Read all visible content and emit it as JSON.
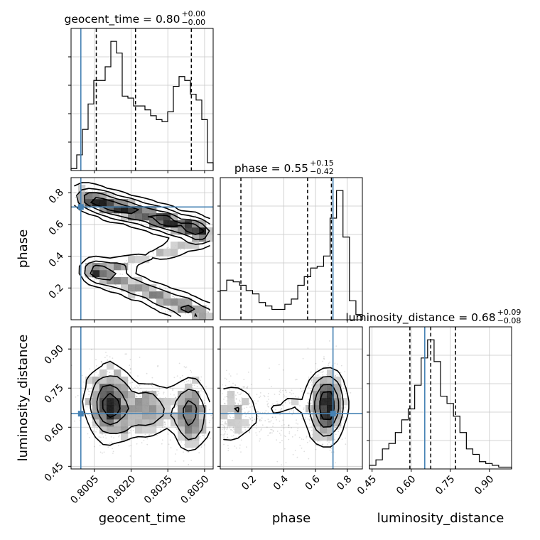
{
  "chart_data": {
    "type": "corner",
    "parameters": [
      "geocent_time",
      "phase",
      "luminosity_distance"
    ],
    "ranges": {
      "geocent_time": [
        0.79955,
        0.80535
      ],
      "phase": [
        0.0,
        0.895
      ],
      "luminosity_distance": [
        0.44,
        0.985
      ]
    },
    "truths": {
      "geocent_time": 0.79995,
      "phase": 0.71,
      "luminosity_distance": 0.652
    },
    "truth_color": "#4682b4",
    "grid": true,
    "titles": {
      "geocent_time": {
        "name": "geocent_time",
        "median": "0.80",
        "plus": "+0.00",
        "minus": "−0.00"
      },
      "phase": {
        "name": "phase",
        "median": "0.55",
        "plus": "+0.15",
        "minus": "−0.42"
      },
      "luminosity_distance": {
        "name": "luminosity_distance",
        "median": "0.68",
        "plus": "+0.09",
        "minus": "−0.08"
      }
    },
    "axis_labels": {
      "geocent_time": "geocent_time",
      "phase": "phase",
      "luminosity_distance": "luminosity_distance"
    },
    "tick_labels": {
      "geocent_time": [
        "0.8005",
        "0.8020",
        "0.8035",
        "0.8050"
      ],
      "phase": [
        "0.2",
        "0.4",
        "0.6",
        "0.8"
      ],
      "luminosity_distance": [
        "0.45",
        "0.60",
        "0.75",
        "0.90"
      ]
    },
    "ticks": {
      "geocent_time": [
        0.8005,
        0.802,
        0.8035,
        0.805
      ],
      "phase": [
        0.2,
        0.4,
        0.6,
        0.8
      ],
      "luminosity_distance": [
        0.45,
        0.6,
        0.75,
        0.9
      ]
    },
    "quantiles": {
      "geocent_time": [
        0.80058,
        0.80218,
        0.80446
      ],
      "phase": [
        0.13,
        0.55,
        0.7
      ],
      "luminosity_distance": [
        0.595,
        0.675,
        0.77
      ]
    },
    "histograms": {
      "geocent_time": [
        1,
        8,
        21,
        34,
        46,
        46,
        53,
        66,
        60,
        38,
        37,
        33,
        33,
        31,
        28,
        26,
        25,
        30,
        43,
        48,
        46,
        39,
        36,
        26,
        4
      ],
      "phase": [
        17,
        23,
        22,
        20,
        17,
        15,
        10,
        8,
        6,
        6,
        9,
        12,
        20,
        25,
        30,
        31,
        37,
        59,
        75,
        48,
        11,
        3
      ],
      "luminosity_distance": [
        2,
        5,
        11,
        14,
        20,
        27,
        33,
        46,
        61,
        71,
        59,
        40,
        36,
        29,
        20,
        11,
        8,
        4,
        3,
        2,
        1,
        1
      ]
    },
    "panels": [
      {
        "x": "geocent_time",
        "y": "phase",
        "kind": "2d-density"
      },
      {
        "x": "geocent_time",
        "y": "luminosity_distance",
        "kind": "2d-density"
      },
      {
        "x": "phase",
        "y": "luminosity_distance",
        "kind": "2d-density"
      }
    ]
  }
}
